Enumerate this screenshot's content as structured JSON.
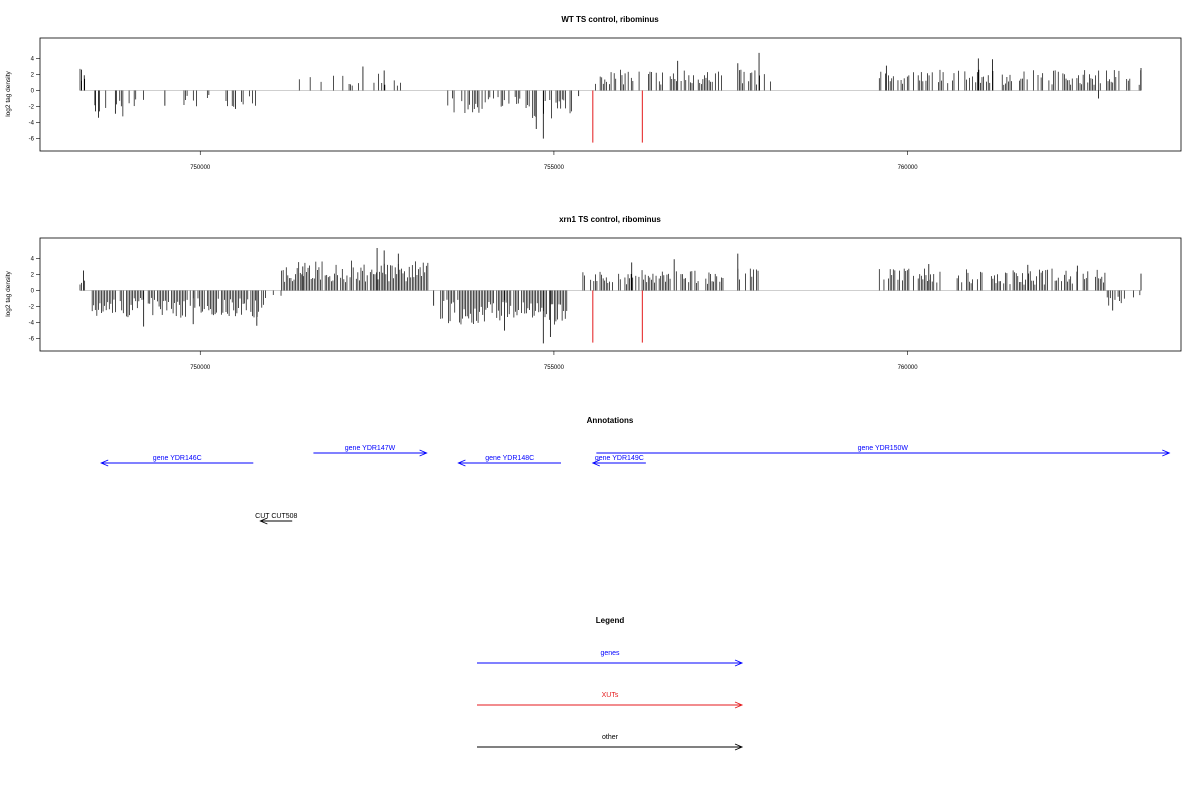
{
  "chart_data": [
    {
      "type": "bar",
      "title": "WT TS control, ribominus",
      "xlabel": "",
      "ylabel": "log2 tag density",
      "xlim": [
        748300,
        763300
      ],
      "ylim": [
        -6.8,
        5.8
      ],
      "x_ticks": [
        750000,
        755000,
        760000
      ],
      "y_ticks": [
        -6,
        -4,
        -2,
        0,
        2,
        4
      ],
      "grid": false,
      "baseline_color": "#bfbfbf",
      "bar_color": "#000000",
      "markers": {
        "color": "#e41a1c",
        "x": [
          755550,
          756250
        ],
        "y_bottom": -6.5
      },
      "segments": [
        {
          "x0": 748300,
          "x1": 748400,
          "level": 2.2,
          "sign": 1,
          "density": 0.6
        },
        {
          "x0": 748400,
          "x1": 749000,
          "level": 2.6,
          "sign": -1,
          "density": 0.45
        },
        {
          "x0": 749000,
          "x1": 750900,
          "level": 1.6,
          "sign": -1,
          "density": 0.22
        },
        {
          "x0": 750900,
          "x1": 751400,
          "level": 1.0,
          "sign": -1,
          "density": 0.05
        },
        {
          "x0": 751400,
          "x1": 753300,
          "level": 1.7,
          "sign": 1,
          "density": 0.18
        },
        {
          "x0": 753500,
          "x1": 754100,
          "level": 2.3,
          "sign": -1,
          "density": 0.7
        },
        {
          "x0": 754100,
          "x1": 754700,
          "level": 1.8,
          "sign": -1,
          "density": 0.6
        },
        {
          "x0": 754700,
          "x1": 755300,
          "level": 2.8,
          "sign": -1,
          "density": 0.7
        },
        {
          "x0": 755500,
          "x1": 757400,
          "level": 2.0,
          "sign": 1,
          "density": 0.6
        },
        {
          "x0": 757600,
          "x1": 758100,
          "level": 2.0,
          "sign": 1,
          "density": 0.6
        },
        {
          "x0": 759600,
          "x1": 763300,
          "level": 2.0,
          "sign": 1,
          "density": 0.6
        }
      ],
      "spikes": [
        [
          748320,
          2.6
        ],
        [
          748360,
          1.9
        ],
        [
          748520,
          -2.6
        ],
        [
          748560,
          -3.4
        ],
        [
          748800,
          -2.9
        ],
        [
          754850,
          -6.0
        ],
        [
          754750,
          -4.8
        ],
        [
          752300,
          3.0
        ],
        [
          752600,
          2.5
        ],
        [
          757900,
          4.7
        ],
        [
          757600,
          3.4
        ],
        [
          761000,
          4.0
        ],
        [
          761200,
          3.9
        ],
        [
          759700,
          3.1
        ],
        [
          756750,
          3.7
        ],
        [
          762700,
          -1.0
        ],
        [
          763300,
          2.8
        ],
        [
          749500,
          -1.9
        ],
        [
          750500,
          -2.3
        ],
        [
          755350,
          -0.7
        ]
      ]
    },
    {
      "type": "bar",
      "title": "xrn1 TS control, ribominus",
      "xlabel": "",
      "ylabel": "log2 tag density",
      "xlim": [
        748300,
        763300
      ],
      "ylim": [
        -6.8,
        5.8
      ],
      "x_ticks": [
        750000,
        755000,
        760000
      ],
      "y_ticks": [
        -6,
        -4,
        -2,
        0,
        2,
        4
      ],
      "grid": false,
      "baseline_color": "#bfbfbf",
      "bar_color": "#000000",
      "markers": {
        "color": "#e41a1c",
        "x": [
          755550,
          756250
        ],
        "y_bottom": -6.5
      },
      "segments": [
        {
          "x0": 748300,
          "x1": 748450,
          "level": 1.5,
          "sign": 1,
          "density": 0.4
        },
        {
          "x0": 748450,
          "x1": 750900,
          "level": 2.6,
          "sign": -1,
          "density": 0.85
        },
        {
          "x0": 750900,
          "x1": 751150,
          "level": 1.2,
          "sign": -1,
          "density": 0.3
        },
        {
          "x0": 751150,
          "x1": 753300,
          "level": 2.9,
          "sign": 1,
          "density": 0.92
        },
        {
          "x0": 753400,
          "x1": 755200,
          "level": 3.3,
          "sign": -1,
          "density": 0.92
        },
        {
          "x0": 755300,
          "x1": 757400,
          "level": 2.0,
          "sign": 1,
          "density": 0.6
        },
        {
          "x0": 757600,
          "x1": 758100,
          "level": 2.1,
          "sign": 1,
          "density": 0.55
        },
        {
          "x0": 759600,
          "x1": 762800,
          "level": 2.1,
          "sign": 1,
          "density": 0.6
        },
        {
          "x0": 762800,
          "x1": 763300,
          "level": 1.5,
          "sign": -1,
          "density": 0.35
        }
      ],
      "spikes": [
        [
          748350,
          2.5
        ],
        [
          749200,
          -4.5
        ],
        [
          749900,
          -4.2
        ],
        [
          750800,
          -4.4
        ],
        [
          752500,
          5.3
        ],
        [
          752600,
          5.0
        ],
        [
          752800,
          4.6
        ],
        [
          754850,
          -6.6
        ],
        [
          754950,
          -5.8
        ],
        [
          754300,
          -5.0
        ],
        [
          757600,
          4.6
        ],
        [
          756100,
          3.5
        ],
        [
          756700,
          3.9
        ],
        [
          762900,
          -2.5
        ],
        [
          763300,
          2.1
        ],
        [
          761700,
          3.2
        ],
        [
          760300,
          3.3
        ],
        [
          762400,
          3.1
        ],
        [
          751450,
          3.0
        ],
        [
          753300,
          -1.9
        ]
      ]
    }
  ],
  "annotations": {
    "title": "Annotations",
    "xlim": [
      748300,
      763300
    ],
    "items": [
      {
        "label": "gene YDR146C",
        "start": 750750,
        "end": 748600,
        "row": 1,
        "color": "#0000ff"
      },
      {
        "label": "gene YDR147W",
        "start": 751600,
        "end": 753200,
        "row": 0,
        "color": "#0000ff"
      },
      {
        "label": "gene YDR148C",
        "start": 755100,
        "end": 753650,
        "row": 1,
        "color": "#0000ff"
      },
      {
        "label": "gene YDR149C",
        "start": 756300,
        "end": 755550,
        "row": 1,
        "color": "#0000ff"
      },
      {
        "label": "gene YDR150W",
        "start": 755600,
        "end": 763700,
        "row": 0,
        "color": "#0000ff"
      },
      {
        "label": "CUT CUT508",
        "start": 751300,
        "end": 750850,
        "row": 4,
        "color": "#000000"
      }
    ]
  },
  "legend": {
    "title": "Legend",
    "items": [
      {
        "label": "genes",
        "color": "#0000ff"
      },
      {
        "label": "XUTs",
        "color": "#e41a1c"
      },
      {
        "label": "other",
        "color": "#000000"
      }
    ]
  }
}
